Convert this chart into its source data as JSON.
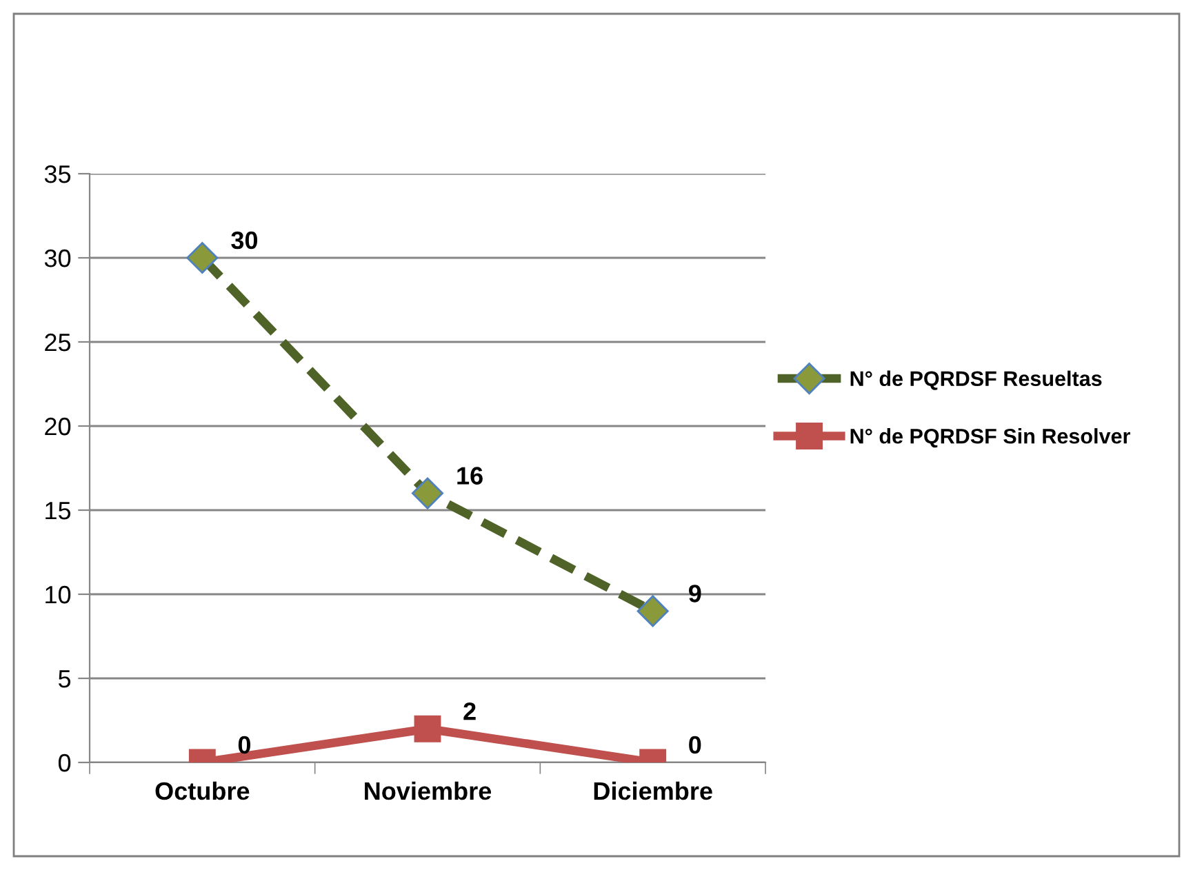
{
  "chart_data": {
    "type": "line",
    "categories": [
      "Octubre",
      "Noviembre",
      "Diciembre"
    ],
    "series": [
      {
        "name": "N° de PQRDSF Resueltas",
        "color": "#4f6228",
        "marker": "diamond",
        "line_style": "dashed",
        "values": [
          30,
          16,
          9
        ]
      },
      {
        "name": "N° de PQRDSF Sin Resolver",
        "color": "#c0504d",
        "marker": "square",
        "line_style": "solid",
        "values": [
          0,
          2,
          0
        ]
      }
    ],
    "ylim": [
      0,
      35
    ],
    "yticks": [
      0,
      5,
      10,
      15,
      20,
      25,
      30,
      35
    ],
    "grid": "y",
    "legend": "right",
    "data_labels": true
  }
}
